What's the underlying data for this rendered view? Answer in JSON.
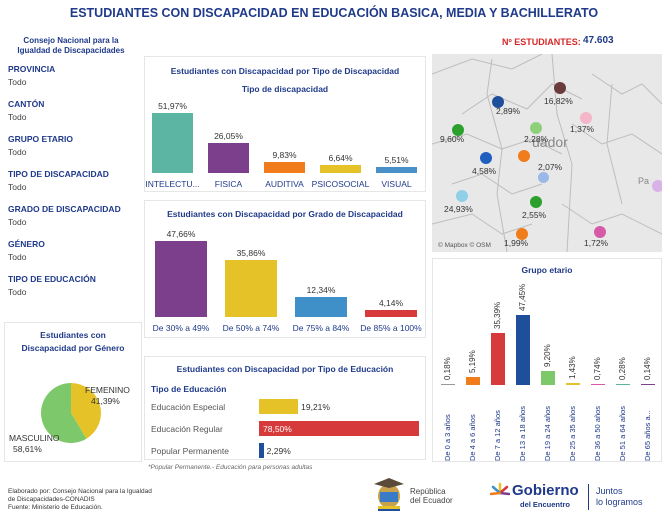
{
  "header": {
    "title": "ESTUDIANTES CON DISCAPACIDAD EN EDUCACIÓN BASICA, MEDIA Y BACHILLERATO",
    "org_line1": "Consejo Nacional para la",
    "org_line2": "Igualdad de Discapacidades",
    "count_label": "Nº ESTUDIANTES:",
    "count_value": "47.603"
  },
  "filters": [
    {
      "label": "PROVINCIA",
      "value": "Todo"
    },
    {
      "label": "CANTÓN",
      "value": "Todo"
    },
    {
      "label": "GRUPO ETARIO",
      "value": "Todo"
    },
    {
      "label": "TIPO DE DISCAPACIDAD",
      "value": "Todo"
    },
    {
      "label": "GRADO DE DISCAPACIDAD",
      "value": "Todo"
    },
    {
      "label": "GÉNERO",
      "value": "Todo"
    },
    {
      "label": "TIPO DE EDUCACIÓN",
      "value": "Todo"
    }
  ],
  "tipo_panel": {
    "title": "Estudiantes con Discapacidad por Tipo de Discapacidad",
    "subtitle": "Tipo de discapacidad"
  },
  "grado_panel": {
    "title": "Estudiantes con Discapacidad por Grado de Discapacidad"
  },
  "educ_panel": {
    "title": "Estudiantes con Discapacidad por Tipo de Educación",
    "subtitle": "Tipo de Educación",
    "note": "*Popular Permanente.- Educación para personas adultas"
  },
  "genero_panel": {
    "title_line1": "Estudiantes con",
    "title_line2": "Discapacidad por Género"
  },
  "edad_panel": {
    "title": "Grupo etario"
  },
  "map": {
    "city": "uador",
    "partial": "Pa",
    "credit": "© Mapbox © OSM",
    "points": [
      {
        "label": "2,89%",
        "color": "#1f4e9a"
      },
      {
        "label": "16,82%",
        "color": "#6b3a3a"
      },
      {
        "label": "9,60%",
        "color": "#2ca02c"
      },
      {
        "label": "2,28%",
        "color": "#8fd17a"
      },
      {
        "label": "1,37%",
        "color": "#f4b6c8"
      },
      {
        "label": "4,58%",
        "color": "#1f5fbf"
      },
      {
        "label": "2,07%",
        "color": "#f07c1b"
      },
      {
        "label": "24,93%",
        "color": "#8fd0e8"
      },
      {
        "label": "2,55%",
        "color": "#2ca02c"
      },
      {
        "label": "1,99%",
        "color": "#f07c1b"
      },
      {
        "label": "1,72%",
        "color": "#d65aa8"
      }
    ]
  },
  "footer": {
    "line1": "Elaborado por: Consejo Nacional para la Igualdad",
    "line2": "de Discapacidades-CONADIS",
    "line3": "Fuente: Ministerio de Educación.",
    "logo1_line1": "República",
    "logo1_line2": "del Ecuador",
    "logo2_big": "Gobierno",
    "logo2_small": "del Encuentro",
    "logo3_line1": "Juntos",
    "logo3_line2": "lo logramos"
  },
  "chart_data": [
    {
      "type": "bar",
      "title": "Estudiantes con Discapacidad por Tipo de Discapacidad",
      "categories": [
        "INTELECTU...",
        "FISICA",
        "AUDITIVA",
        "PSICOSOCIAL",
        "VISUAL"
      ],
      "values": [
        51.97,
        26.05,
        9.83,
        6.64,
        5.51
      ],
      "labels": [
        "51,97%",
        "26,05%",
        "9,83%",
        "6,64%",
        "5,51%"
      ],
      "colors": [
        "#5bb5a2",
        "#7b3f8c",
        "#f07c1b",
        "#e6c229",
        "#4a90c8"
      ]
    },
    {
      "type": "bar",
      "title": "Estudiantes con Discapacidad por Grado de Discapacidad",
      "categories": [
        "De 30% a 49%",
        "De 50% a 74%",
        "De 75% a 84%",
        "De 85% a 100%"
      ],
      "values": [
        47.66,
        35.86,
        12.34,
        4.14
      ],
      "labels": [
        "47,66%",
        "35,86%",
        "12,34%",
        "4,14%"
      ],
      "colors": [
        "#7b3f8c",
        "#e6c229",
        "#3f8fc9",
        "#d63a3a"
      ]
    },
    {
      "type": "bar",
      "title": "Estudiantes con Discapacidad por Tipo de Educación",
      "categories": [
        "Educación Especial",
        "Educación Regular",
        "Popular Permanente"
      ],
      "values": [
        19.21,
        78.5,
        2.29
      ],
      "labels": [
        "19,21%",
        "78,50%",
        "2,29%"
      ],
      "colors": [
        "#e6c229",
        "#d63a3a",
        "#1f4e9a"
      ]
    },
    {
      "type": "pie",
      "title": "Estudiantes con Discapacidad por Género",
      "categories": [
        "FEMENINO",
        "MASCULINO"
      ],
      "values": [
        41.39,
        58.61
      ],
      "labels": [
        "41,39%",
        "58,61%"
      ],
      "colors": [
        "#e6c229",
        "#7cc86b"
      ]
    },
    {
      "type": "bar",
      "title": "Grupo etario",
      "categories": [
        "De 0 a 3 años",
        "De 4 a 6 años",
        "De 7 a 12 años",
        "De 13 a 18 años",
        "De 19 a 24 años",
        "De 25 a 35 años",
        "De 36 a 50 años",
        "De 51 a 64 años",
        "De 65 años a..."
      ],
      "values": [
        0.18,
        5.19,
        35.39,
        47.45,
        9.2,
        1.43,
        0.74,
        0.28,
        0.14
      ],
      "labels": [
        "0,18%",
        "5,19%",
        "35,39%",
        "47,45%",
        "9,20%",
        "1,43%",
        "0,74%",
        "0,28%",
        "0,14%"
      ],
      "colors": [
        "#999999",
        "#f07c1b",
        "#d63a3a",
        "#1f4e9a",
        "#7cc86b",
        "#e6c229",
        "#d65aa8",
        "#5bb5a2",
        "#7b3f8c"
      ]
    }
  ]
}
